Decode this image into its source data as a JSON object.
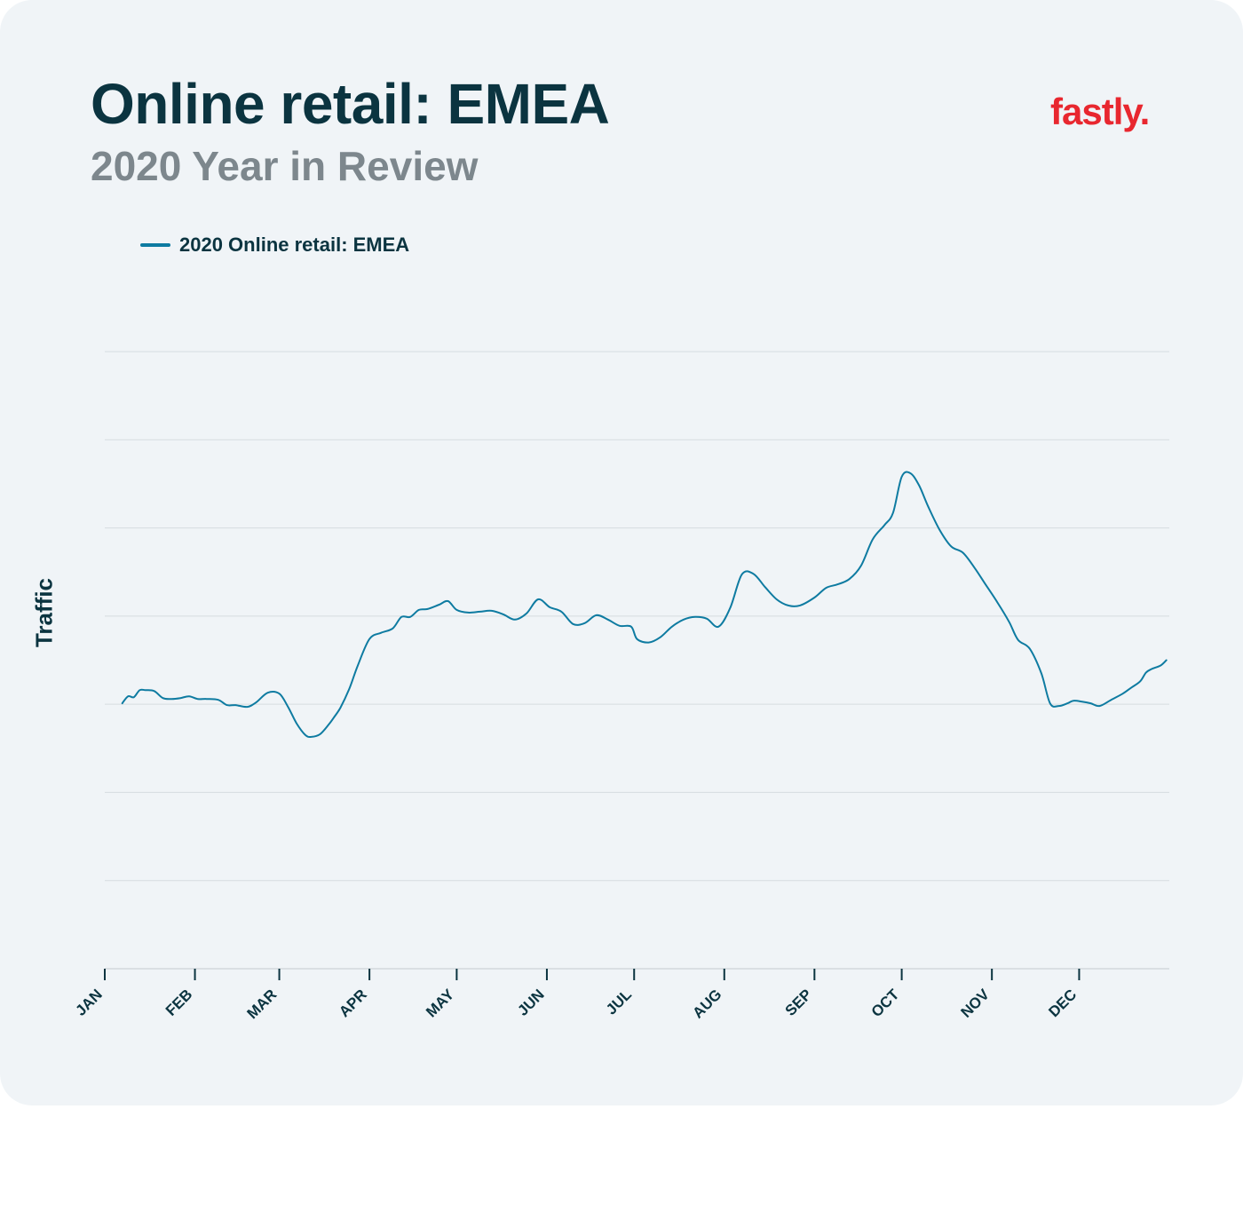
{
  "header": {
    "title": "Online retail: EMEA",
    "subtitle": "2020 Year in Review",
    "brand": "fastly."
  },
  "colors": {
    "background": "#f0f4f7",
    "title": "#0b3440",
    "subtitle": "#7d878d",
    "brand": "#e8272f",
    "series": "#0e7ba1",
    "grid": "#d6dce0"
  },
  "chart_data": {
    "type": "line",
    "title": "Online retail: EMEA",
    "subtitle": "2020 Year in Review",
    "ylabel": "Traffic",
    "xlabel": "",
    "y_tick_labels_shown": false,
    "grid": true,
    "legend_position": "top-left",
    "ylim": [
      0,
      7
    ],
    "x_tick_labels": [
      "JAN",
      "FEB",
      "MAR",
      "APR",
      "MAY",
      "JUN",
      "JUL",
      "AUG",
      "SEP",
      "OCT",
      "NOV",
      "DEC"
    ],
    "xlim": [
      "2020-01-01",
      "2020-12-31"
    ],
    "series": [
      {
        "name": "2020 Online retail: EMEA",
        "x": [
          "2020-01-07",
          "2020-01-09",
          "2020-01-11",
          "2020-01-13",
          "2020-01-15",
          "2020-01-18",
          "2020-01-21",
          "2020-01-24",
          "2020-01-27",
          "2020-01-30",
          "2020-02-02",
          "2020-02-05",
          "2020-02-09",
          "2020-02-12",
          "2020-02-15",
          "2020-02-19",
          "2020-02-22",
          "2020-02-26",
          "2020-03-01",
          "2020-03-04",
          "2020-03-07",
          "2020-03-10",
          "2020-03-12",
          "2020-03-15",
          "2020-03-18",
          "2020-03-20",
          "2020-03-22",
          "2020-03-25",
          "2020-03-28",
          "2020-04-01",
          "2020-04-05",
          "2020-04-09",
          "2020-04-12",
          "2020-04-15",
          "2020-04-18",
          "2020-04-21",
          "2020-04-25",
          "2020-04-28",
          "2020-05-01",
          "2020-05-05",
          "2020-05-09",
          "2020-05-13",
          "2020-05-17",
          "2020-05-21",
          "2020-05-25",
          "2020-05-29",
          "2020-06-02",
          "2020-06-06",
          "2020-06-10",
          "2020-06-14",
          "2020-06-18",
          "2020-06-22",
          "2020-06-26",
          "2020-06-30",
          "2020-07-02",
          "2020-07-06",
          "2020-07-10",
          "2020-07-14",
          "2020-07-18",
          "2020-07-22",
          "2020-07-26",
          "2020-07-30",
          "2020-08-03",
          "2020-08-07",
          "2020-08-11",
          "2020-08-15",
          "2020-08-19",
          "2020-08-23",
          "2020-08-27",
          "2020-09-01",
          "2020-09-05",
          "2020-09-09",
          "2020-09-13",
          "2020-09-17",
          "2020-09-21",
          "2020-09-25",
          "2020-09-28",
          "2020-10-01",
          "2020-10-04",
          "2020-10-07",
          "2020-10-10",
          "2020-10-14",
          "2020-10-18",
          "2020-10-22",
          "2020-10-26",
          "2020-10-30",
          "2020-11-03",
          "2020-11-07",
          "2020-11-10",
          "2020-11-14",
          "2020-11-18",
          "2020-11-21",
          "2020-11-24",
          "2020-11-27",
          "2020-11-29",
          "2020-12-02",
          "2020-12-05",
          "2020-12-08",
          "2020-12-12",
          "2020-12-16",
          "2020-12-19",
          "2020-12-22",
          "2020-12-24",
          "2020-12-26",
          "2020-12-29",
          "2020-12-31"
        ],
        "y": [
          3.01,
          3.09,
          3.08,
          3.16,
          3.16,
          3.15,
          3.07,
          3.06,
          3.07,
          3.09,
          3.06,
          3.06,
          3.05,
          2.99,
          2.99,
          2.97,
          3.02,
          3.13,
          3.12,
          2.97,
          2.78,
          2.65,
          2.63,
          2.66,
          2.77,
          2.86,
          2.96,
          3.17,
          3.44,
          3.74,
          3.81,
          3.86,
          3.99,
          3.99,
          4.07,
          4.08,
          4.13,
          4.17,
          4.07,
          4.04,
          4.05,
          4.06,
          4.02,
          3.96,
          4.03,
          4.19,
          4.1,
          4.05,
          3.91,
          3.92,
          4.01,
          3.96,
          3.89,
          3.88,
          3.74,
          3.7,
          3.76,
          3.88,
          3.96,
          3.99,
          3.97,
          3.88,
          4.09,
          4.47,
          4.48,
          4.33,
          4.19,
          4.12,
          4.12,
          4.21,
          4.32,
          4.36,
          4.42,
          4.57,
          4.87,
          5.03,
          5.17,
          5.58,
          5.62,
          5.48,
          5.25,
          4.98,
          4.79,
          4.72,
          4.55,
          4.35,
          4.15,
          3.93,
          3.73,
          3.63,
          3.35,
          3.01,
          2.98,
          3.01,
          3.04,
          3.03,
          3.01,
          2.98,
          3.05,
          3.12,
          3.19,
          3.26,
          3.36,
          3.4,
          3.44,
          3.5
        ]
      }
    ]
  }
}
